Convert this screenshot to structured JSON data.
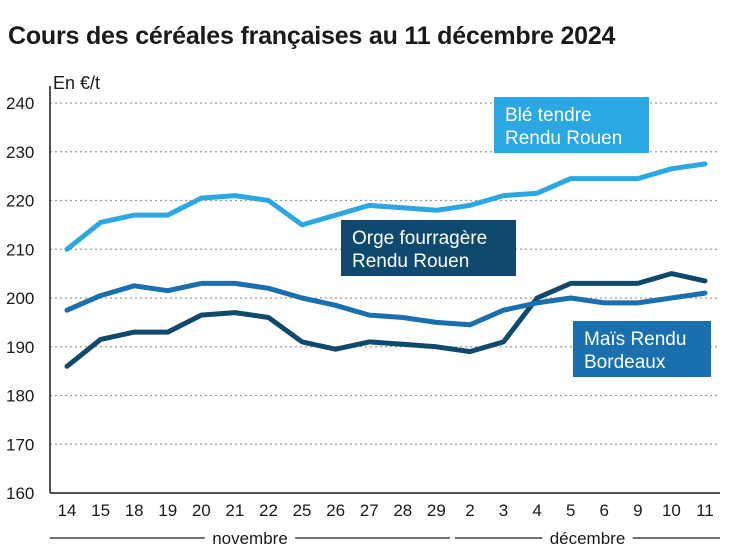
{
  "chart_data": {
    "type": "line",
    "title": "Cours des céréales françaises au 11 décembre 2024",
    "ylabel": "En €/t",
    "xlabel": "",
    "ylim": [
      160,
      240
    ],
    "yticks": [
      160,
      170,
      180,
      190,
      200,
      210,
      220,
      230,
      240
    ],
    "categories": [
      "14",
      "15",
      "18",
      "19",
      "20",
      "21",
      "22",
      "25",
      "26",
      "27",
      "28",
      "29",
      "2",
      "3",
      "4",
      "5",
      "6",
      "9",
      "10",
      "11"
    ],
    "months": [
      {
        "label": "novembre",
        "from": 0,
        "to": 11
      },
      {
        "label": "décembre",
        "from": 12,
        "to": 19
      }
    ],
    "series": [
      {
        "name": "Blé tendre Rendu Rouen",
        "label_lines": [
          "Blé tendre",
          "Rendu Rouen"
        ],
        "color": "#2ba8e2",
        "values": [
          210,
          215.5,
          217,
          217,
          220.5,
          221,
          220,
          215,
          217,
          219,
          218.5,
          218,
          219,
          221,
          221.5,
          224.5,
          224.5,
          224.5,
          226.5,
          227.5
        ]
      },
      {
        "name": "Orge fourragère Rendu Rouen",
        "label_lines": [
          "Orge fourragère",
          "Rendu Rouen"
        ],
        "color": "#0f4a6e",
        "values": [
          186,
          191.5,
          193,
          193,
          196.5,
          197,
          196,
          191,
          189.5,
          191,
          190.5,
          190,
          189,
          191,
          200,
          203,
          203,
          203,
          205,
          203.5
        ]
      },
      {
        "name": "Maïs Rendu Bordeaux",
        "label_lines": [
          "Maïs Rendu",
          "Bordeaux"
        ],
        "color": "#1a6fae",
        "values": [
          197.5,
          200.5,
          202.5,
          201.5,
          203,
          203,
          202,
          200,
          198.5,
          196.5,
          196,
          195,
          194.5,
          197.5,
          199,
          200,
          199,
          199,
          200,
          201
        ]
      }
    ]
  }
}
